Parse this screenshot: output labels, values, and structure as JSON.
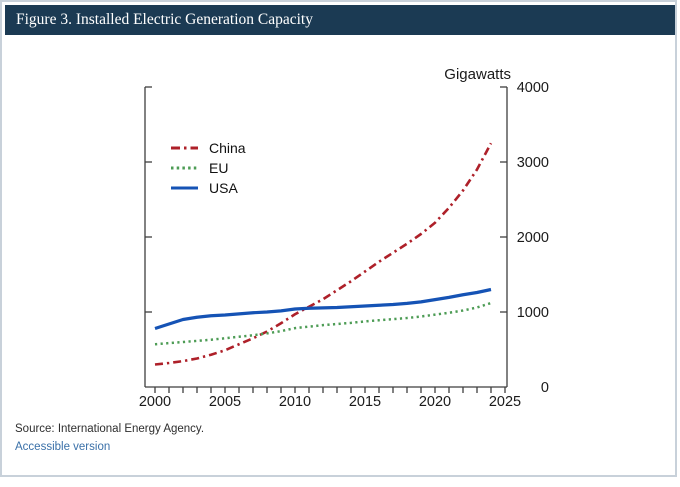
{
  "header": {
    "title": "Figure 3. Installed Electric Generation Capacity"
  },
  "chart_data": {
    "type": "line",
    "title": "Figure 3. Installed Electric Generation Capacity",
    "unit_label": "Gigawatts",
    "xlabel": "",
    "ylabel": "Gigawatts",
    "x": [
      2000,
      2001,
      2002,
      2003,
      2004,
      2005,
      2006,
      2007,
      2008,
      2009,
      2010,
      2011,
      2012,
      2013,
      2014,
      2015,
      2016,
      2017,
      2018,
      2019,
      2020,
      2021,
      2022,
      2023,
      2024
    ],
    "series": [
      {
        "name": "China",
        "color": "#ae2029",
        "style": "dashdot",
        "values": [
          300,
          320,
          345,
          380,
          430,
          490,
          570,
          650,
          740,
          850,
          970,
          1070,
          1170,
          1290,
          1410,
          1540,
          1670,
          1790,
          1910,
          2040,
          2190,
          2390,
          2620,
          2900,
          3250
        ]
      },
      {
        "name": "EU",
        "color": "#4d9c55",
        "style": "dotted",
        "values": [
          570,
          585,
          600,
          615,
          630,
          650,
          670,
          690,
          715,
          745,
          785,
          805,
          825,
          840,
          855,
          875,
          890,
          905,
          920,
          940,
          965,
          990,
          1020,
          1060,
          1120
        ]
      },
      {
        "name": "USA",
        "color": "#1553b5",
        "style": "solid",
        "values": [
          780,
          840,
          900,
          930,
          950,
          960,
          975,
          990,
          1000,
          1015,
          1040,
          1050,
          1055,
          1060,
          1070,
          1080,
          1090,
          1100,
          1115,
          1135,
          1165,
          1195,
          1230,
          1260,
          1300
        ]
      }
    ],
    "x_tick_labels": [
      2000,
      2005,
      2010,
      2015,
      2020,
      2025
    ],
    "x_minor_tick_interval": 1,
    "y_ticks": [
      0,
      1000,
      2000,
      3000,
      4000
    ],
    "xlim": [
      1999.3,
      2025.1
    ],
    "ylim": [
      0,
      4000
    ],
    "grid": false,
    "legend_position": "upper-left"
  },
  "footer": {
    "source": "Source: International Energy Agency.",
    "link": "Accessible version"
  },
  "colors": {
    "header_bg": "#1b3a53",
    "header_text": "#ffffff",
    "axis": "#3f3f3f",
    "tick_label": "#1a1a1a",
    "link": "#3a70a8",
    "panel_border": "#c8d1da",
    "china": "#ae2029",
    "eu": "#4d9c55",
    "usa": "#1553b5"
  }
}
